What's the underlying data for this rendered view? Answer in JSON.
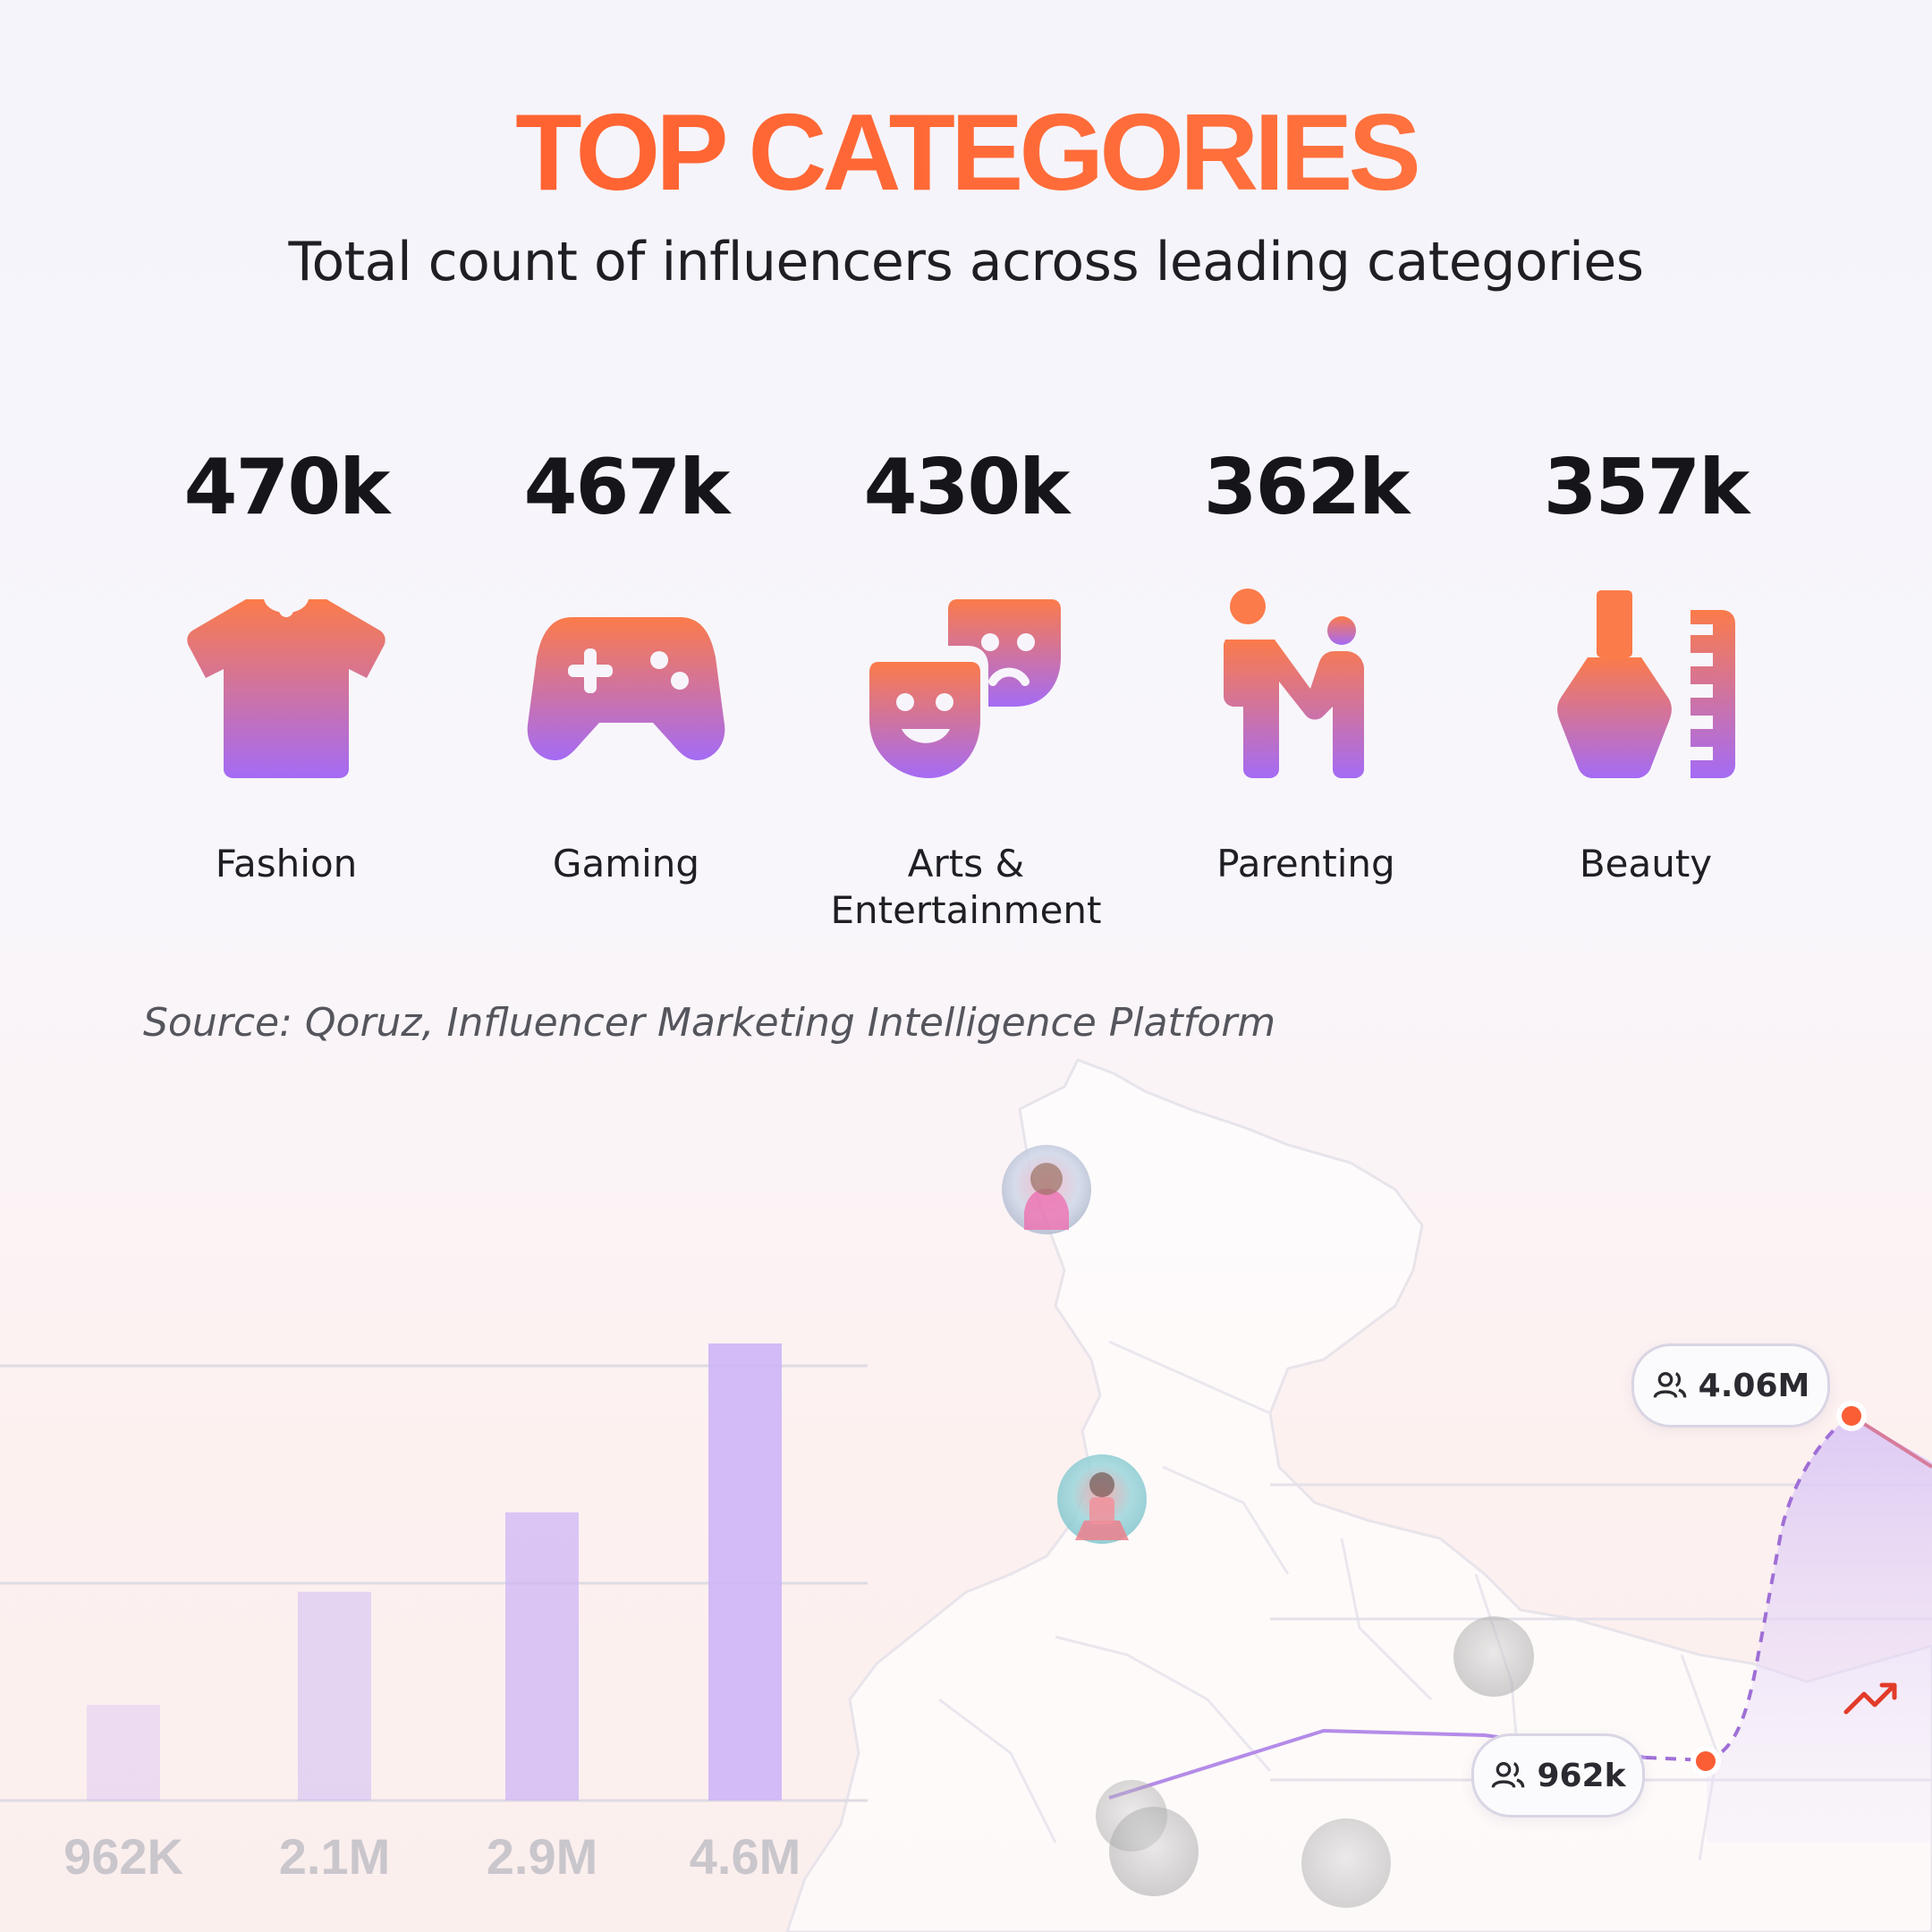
{
  "header": {
    "title": "TOP CATEGORIES",
    "subtitle": "Total count of influencers across leading categories"
  },
  "categories": [
    {
      "value": "470k",
      "label": "Fashion",
      "icon": "t-shirt-icon"
    },
    {
      "value": "467k",
      "label": "Gaming",
      "icon": "gamepad-icon"
    },
    {
      "value": "430k",
      "label": "Arts &\nEntertainment",
      "icon": "theater-masks-icon"
    },
    {
      "value": "362k",
      "label": "Parenting",
      "icon": "parent-child-icon"
    },
    {
      "value": "357k",
      "label": "Beauty",
      "icon": "nail-polish-icon"
    }
  ],
  "source": "Source: Qoruz, Influencer Marketing Intelligence Platform",
  "colors": {
    "accent": "#fb5e35",
    "icon_gradient_top": "#fb7b4a",
    "icon_gradient_bottom": "#a46bf5",
    "bar_color": "#cdb5f6",
    "line_color": "#a67be8",
    "point_color": "#fb5e35"
  },
  "decor": {
    "pills": [
      {
        "label": "4.06M",
        "icon": "users-icon"
      },
      {
        "label": "962k",
        "icon": "users-icon"
      }
    ],
    "trend_icon": "trend-up-icon",
    "avatars": [
      "avatar-1",
      "avatar-2",
      "avatar-3",
      "avatar-4",
      "avatar-5",
      "avatar-6"
    ]
  },
  "chart_data": [
    {
      "type": "bar",
      "categories": [
        "962K",
        "2.1M",
        "2.9M",
        "4.6M"
      ],
      "values": [
        962000,
        2100000,
        2900000,
        4600000
      ],
      "title": "",
      "xlabel": "",
      "ylabel": "",
      "ylim": [
        0,
        4600000
      ],
      "grid": true
    },
    {
      "type": "line",
      "series": [
        {
          "values": [
            962000,
            4060000
          ]
        }
      ],
      "annotations": [
        "4.06M",
        "962k"
      ]
    }
  ]
}
